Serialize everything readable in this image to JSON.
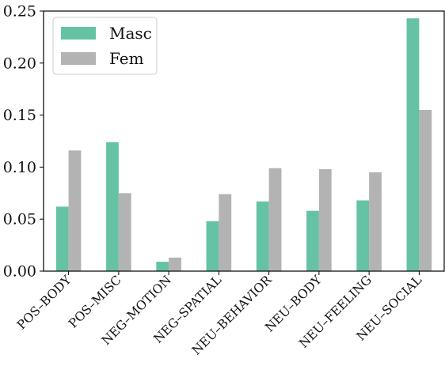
{
  "chart_data": {
    "type": "bar",
    "categories": [
      "POS–BODY",
      "POS–MISC",
      "NEG–MOTION",
      "NEG–SPATIAL",
      "NEU–BEHAVIOR",
      "NEU–BODY",
      "NEU–FEELING",
      "NEU–SOCIAL"
    ],
    "series": [
      {
        "name": "Masc",
        "color": "#66c2a5",
        "values": [
          0.062,
          0.124,
          0.009,
          0.048,
          0.067,
          0.058,
          0.068,
          0.243
        ]
      },
      {
        "name": "Fem",
        "color": "#b3b3b3",
        "values": [
          0.116,
          0.075,
          0.013,
          0.074,
          0.099,
          0.098,
          0.095,
          0.155
        ]
      }
    ],
    "yticks": [
      "0.00",
      "0.05",
      "0.10",
      "0.15",
      "0.20",
      "0.25"
    ],
    "ylim": [
      0,
      0.25
    ],
    "xlabel": "",
    "ylabel": "",
    "title": "",
    "legend_position": "top-left",
    "grid": false
  }
}
